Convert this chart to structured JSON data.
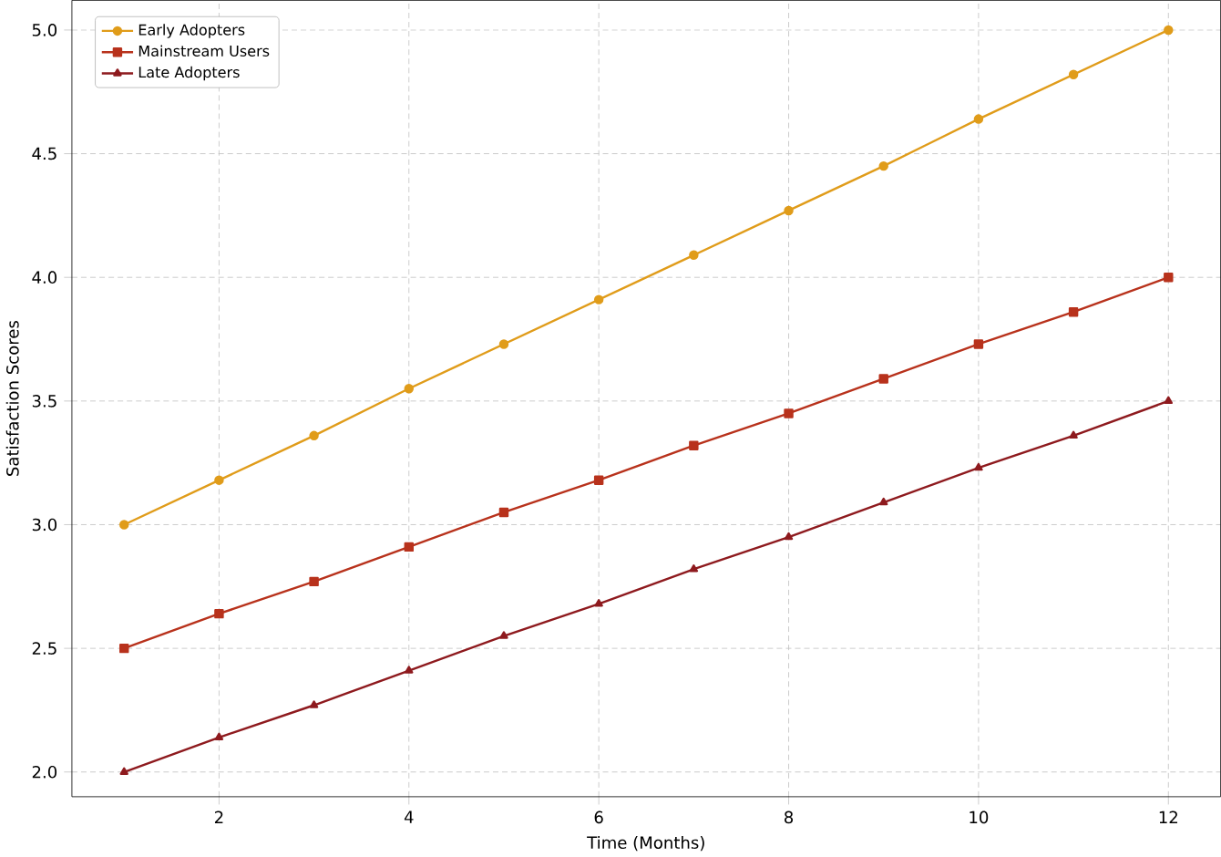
{
  "chart_data": {
    "type": "line",
    "xlabel": "Time (Months)",
    "ylabel": "Satisfaction Scores",
    "x": [
      1,
      2,
      3,
      4,
      5,
      6,
      7,
      8,
      9,
      10,
      11,
      12
    ],
    "series": [
      {
        "name": "Early Adopters",
        "color": "#e09c1a",
        "marker": "circle",
        "values": [
          3.0,
          3.18,
          3.36,
          3.55,
          3.73,
          3.91,
          4.09,
          4.27,
          4.45,
          4.64,
          4.82,
          5.0
        ]
      },
      {
        "name": "Mainstream Users",
        "color": "#b8321c",
        "marker": "square",
        "values": [
          2.5,
          2.64,
          2.77,
          2.91,
          3.05,
          3.18,
          3.32,
          3.45,
          3.59,
          3.73,
          3.86,
          4.0
        ]
      },
      {
        "name": "Late Adopters",
        "color": "#8e1a1e",
        "marker": "triangle",
        "values": [
          2.0,
          2.14,
          2.27,
          2.41,
          2.55,
          2.68,
          2.82,
          2.95,
          3.09,
          3.23,
          3.36,
          3.5
        ]
      }
    ],
    "xlim": [
      0.45,
      12.55
    ],
    "ylim": [
      1.9,
      5.12
    ],
    "xticks": [
      2,
      4,
      6,
      8,
      10,
      12
    ],
    "yticks": [
      {
        "value": 2,
        "label": "2.0"
      },
      2.5,
      {
        "value": 3,
        "label": "3.0"
      },
      3.5,
      {
        "value": 4,
        "label": "4.0"
      },
      4.5,
      {
        "value": 5,
        "label": "5.0"
      }
    ],
    "grid": true,
    "legend": "top left",
    "line_style": "solid"
  }
}
